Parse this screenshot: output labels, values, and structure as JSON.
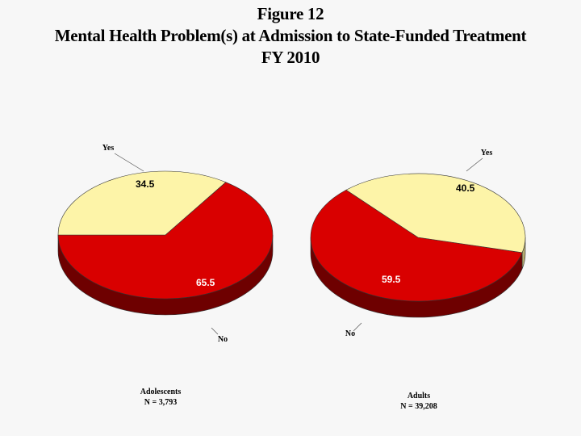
{
  "header": {
    "figure_label": "Figure 12",
    "title": "Mental Health Problem(s) at Admission to State-Funded Treatment",
    "subtitle": "FY 2010"
  },
  "colors": {
    "yes": "#fdf4a8",
    "no": "#d90000",
    "no_side": "#6e0000",
    "yes_side": "#b5ac70",
    "outline": "#333333"
  },
  "chart_data": [
    {
      "type": "pie",
      "name": "Adolescents",
      "n_label": "N = 3,793",
      "slices": [
        {
          "label": "Yes",
          "value": 34.5,
          "value_label": "34.5"
        },
        {
          "label": "No",
          "value": 65.5,
          "value_label": "65.5"
        }
      ]
    },
    {
      "type": "pie",
      "name": "Adults",
      "n_label": "N = 39,208",
      "slices": [
        {
          "label": "Yes",
          "value": 40.5,
          "value_label": "40.5"
        },
        {
          "label": "No",
          "value": 59.5,
          "value_label": "59.5"
        }
      ]
    }
  ]
}
